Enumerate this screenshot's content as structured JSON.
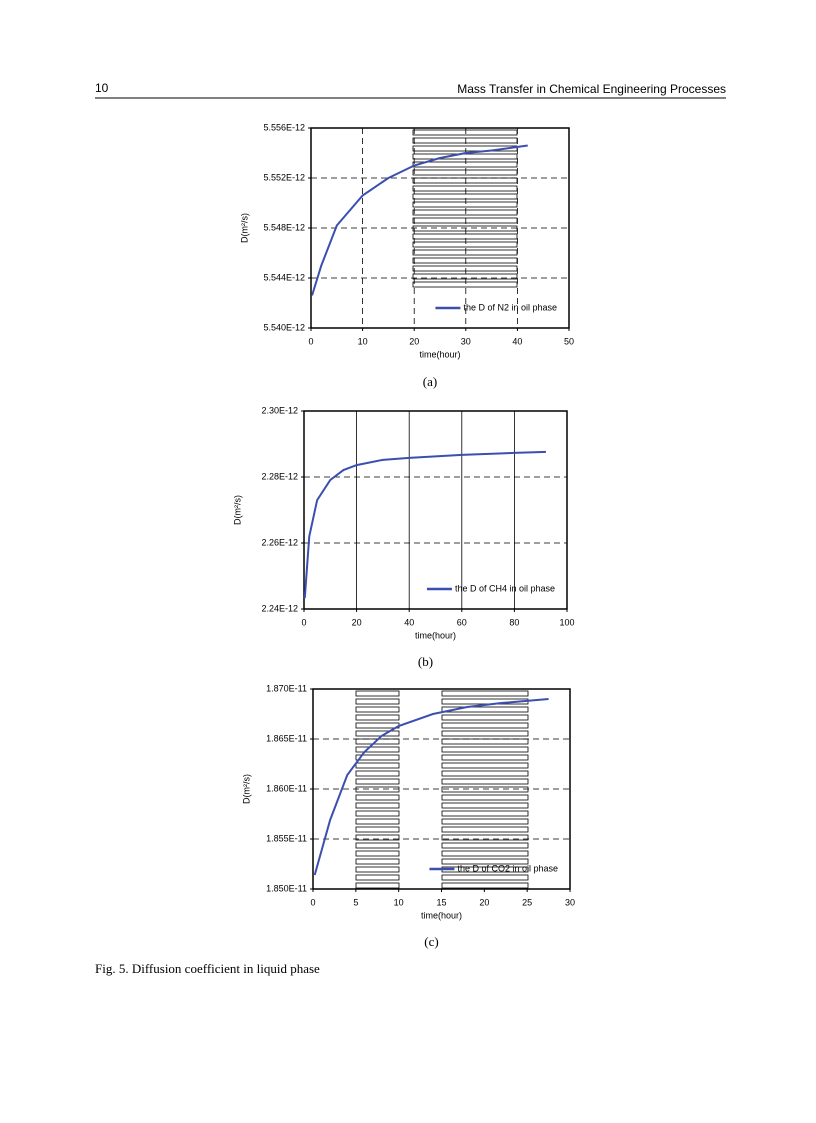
{
  "header": {
    "page_number": "10",
    "title": "Mass Transfer in Chemical Engineering Processes"
  },
  "chart_data": [
    {
      "type": "line",
      "label": "(a)",
      "x_label": "time(hour)",
      "y_label": "D(m²/s)",
      "x": [
        0.2,
        2,
        5,
        10,
        15,
        20,
        25,
        30,
        35,
        42
      ],
      "series": [
        {
          "name": "the D of N2 in oil phase",
          "color": "#3a4fb0",
          "values": [
            5.5426e-12,
            5.545e-12,
            5.5482e-12,
            5.5506e-12,
            5.552e-12,
            5.553e-12,
            5.5536e-12,
            5.554e-12,
            5.5542e-12,
            5.5546e-12
          ]
        }
      ],
      "xlim": [
        0,
        50
      ],
      "xticks": [
        0,
        10,
        20,
        30,
        40,
        50
      ],
      "ylim": [
        5.54e-12,
        5.556e-12
      ],
      "yticks": [
        {
          "value": 5.54e-12,
          "label": "5.540E-12"
        },
        {
          "value": 5.544e-12,
          "label": "5.544E-12"
        },
        {
          "value": 5.548e-12,
          "label": "5.548E-12"
        },
        {
          "value": 5.552e-12,
          "label": "5.552E-12"
        },
        {
          "value": 5.556e-12,
          "label": "5.556E-12"
        }
      ],
      "grid": true,
      "x_grid": true,
      "x_grid_style": "dashed",
      "legend": "lower right"
    },
    {
      "type": "line",
      "label": "(b)",
      "x_label": "time(hour)",
      "y_label": "D(m²/s)",
      "x": [
        0.3,
        2,
        5,
        10,
        15,
        20,
        30,
        40,
        60,
        80,
        92
      ],
      "series": [
        {
          "name": "the D of CH4 in oil phase",
          "color": "#3a4fb0",
          "values": [
            2.2433e-12,
            2.262e-12,
            2.273e-12,
            2.2791e-12,
            2.2821e-12,
            2.2836e-12,
            2.2852e-12,
            2.2858e-12,
            2.2867e-12,
            2.2873e-12,
            2.2876e-12
          ]
        }
      ],
      "xlim": [
        0,
        100
      ],
      "xticks": [
        0,
        20,
        40,
        60,
        80,
        100
      ],
      "ylim": [
        2.24e-12,
        2.3e-12
      ],
      "yticks": [
        {
          "value": 2.24e-12,
          "label": "2.24E-12"
        },
        {
          "value": 2.26e-12,
          "label": "2.26E-12"
        },
        {
          "value": 2.28e-12,
          "label": "2.28E-12"
        },
        {
          "value": 2.3e-12,
          "label": "2.30E-12"
        }
      ],
      "grid": true,
      "x_grid": true,
      "x_grid_style": "solid",
      "legend": "lower right"
    },
    {
      "type": "line",
      "label": "(c)",
      "x_label": "time(hour)",
      "y_label": "D(m²/s)",
      "x": [
        0.2,
        2,
        4,
        6,
        8,
        10,
        14,
        18,
        22,
        27.5
      ],
      "series": [
        {
          "name": "the D of CO2 in oil phase",
          "color": "#3a4fb0",
          "values": [
            1.8514e-11,
            1.8569e-11,
            1.8614e-11,
            1.8637e-11,
            1.8653e-11,
            1.8663e-11,
            1.8675e-11,
            1.8682e-11,
            1.8686e-11,
            1.869e-11
          ]
        }
      ],
      "xlim": [
        0,
        30
      ],
      "xticks": [
        0,
        5,
        10,
        15,
        20,
        25,
        30
      ],
      "ylim": [
        1.85e-11,
        1.87e-11
      ],
      "yticks": [
        {
          "value": 1.85e-11,
          "label": "1.850E-11"
        },
        {
          "value": 1.855e-11,
          "label": "1.855E-11"
        },
        {
          "value": 1.86e-11,
          "label": "1.860E-11"
        },
        {
          "value": 1.865e-11,
          "label": "1.865E-11"
        },
        {
          "value": 1.87e-11,
          "label": "1.870E-11"
        }
      ],
      "grid": true,
      "x_grid": false,
      "x_grid_style": "dashed",
      "legend": "lower right"
    }
  ],
  "caption": "Fig. 5. Diffusion coefficient in liquid phase"
}
